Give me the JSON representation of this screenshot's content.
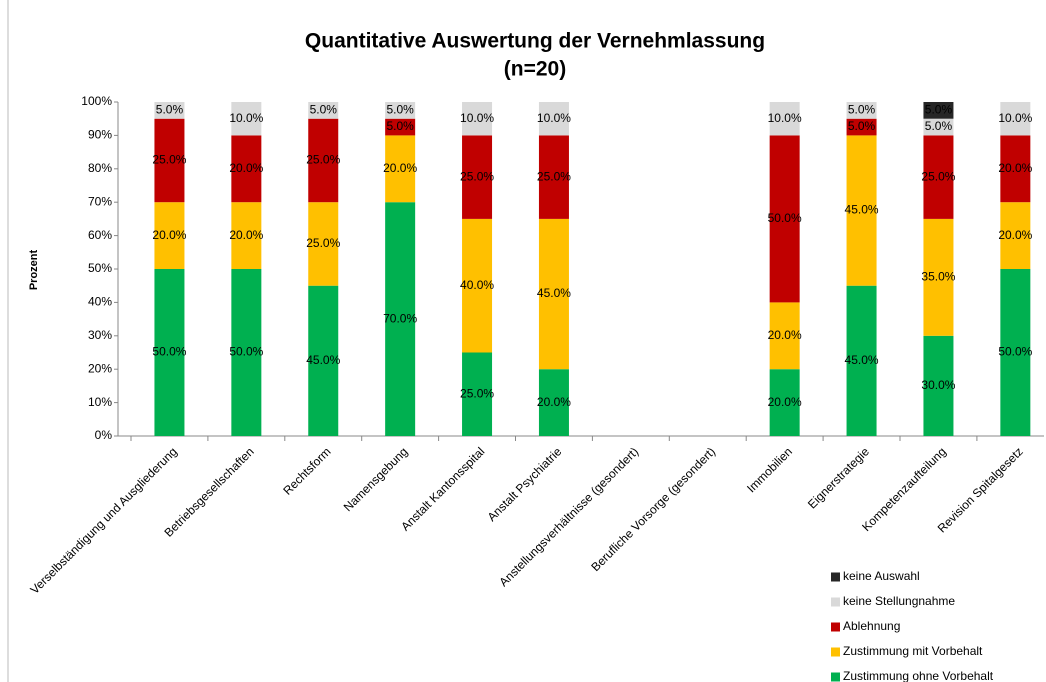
{
  "chart_data": {
    "type": "stacked_bar",
    "title": "Quantitative Auswertung der Vernehmlassung",
    "subtitle": "(n=20)",
    "ylabel": "Prozent",
    "categories": [
      "Verselbständigung und Ausgliederung",
      "Betriebsgesellschaften",
      "Rechtsform",
      "Namensgebung",
      "Anstalt Kantonsspital",
      "Anstalt Psychiatrie",
      "Anstellungsverhältnisse (gesondert)",
      "Berufliche Vorsorge (gesondert)",
      "Immobilien",
      "Eignerstrategie",
      "Kompetenzaufteilung",
      "Revision Spitalgesetz"
    ],
    "series": [
      {
        "name": "Zustimmung ohne Vorbehalt",
        "color": "#00b050",
        "values": [
          50,
          50,
          45,
          70,
          25,
          20,
          null,
          null,
          20,
          45,
          30,
          50
        ],
        "value_labels": [
          "50.0%",
          "50.0%",
          "45.0%",
          "70.0%",
          "25.0%",
          "20.0%",
          null,
          null,
          "20.0%",
          "45.0%",
          "30.0%",
          "50.0%"
        ]
      },
      {
        "name": "Zustimmung mit Vorbehalt",
        "color": "#ffc000",
        "values": [
          20,
          20,
          25,
          20,
          40,
          45,
          null,
          null,
          20,
          45,
          35,
          20
        ],
        "value_labels": [
          "20.0%",
          "20.0%",
          "25.0%",
          "20.0%",
          "40.0%",
          "45.0%",
          null,
          null,
          "20.0%",
          "45.0%",
          "35.0%",
          "20.0%"
        ]
      },
      {
        "name": "Ablehnung",
        "color": "#c00000",
        "values": [
          25,
          20,
          25,
          5,
          25,
          25,
          null,
          null,
          50,
          5,
          25,
          20
        ],
        "value_labels": [
          "25.0%",
          "20.0%",
          "25.0%",
          "5.0%",
          "25.0%",
          "25.0%",
          null,
          null,
          "50.0%",
          "5.0%",
          "25.0%",
          "20.0%"
        ]
      },
      {
        "name": "keine Stellungnahme",
        "color": "#d9d9d9",
        "values": [
          5,
          10,
          5,
          5,
          10,
          10,
          null,
          null,
          10,
          5,
          5,
          10
        ],
        "value_labels": [
          "5.0%",
          "10.0%",
          "5.0%",
          "5.0%",
          "10.0%",
          "10.0%",
          null,
          null,
          "10.0%",
          "5.0%",
          "5.0%",
          "10.0%"
        ]
      },
      {
        "name": "keine Auswahl",
        "color": "#262626",
        "values": [
          null,
          null,
          null,
          null,
          null,
          null,
          null,
          null,
          null,
          null,
          5,
          null
        ],
        "value_labels": [
          null,
          null,
          null,
          null,
          null,
          null,
          null,
          null,
          null,
          null,
          "5.0%",
          null
        ]
      }
    ],
    "ylim": [
      0,
      100
    ],
    "yticks": [
      {
        "value": 0,
        "label": "0%"
      },
      {
        "value": 10,
        "label": "10%"
      },
      {
        "value": 20,
        "label": "20%"
      },
      {
        "value": 30,
        "label": "30%"
      },
      {
        "value": 40,
        "label": "40%"
      },
      {
        "value": 50,
        "label": "50%"
      },
      {
        "value": 60,
        "label": "60%"
      },
      {
        "value": 70,
        "label": "70%"
      },
      {
        "value": 80,
        "label": "80%"
      },
      {
        "value": 90,
        "label": "90%"
      },
      {
        "value": 100,
        "label": "100%"
      }
    ],
    "legend": "bottom-right"
  }
}
